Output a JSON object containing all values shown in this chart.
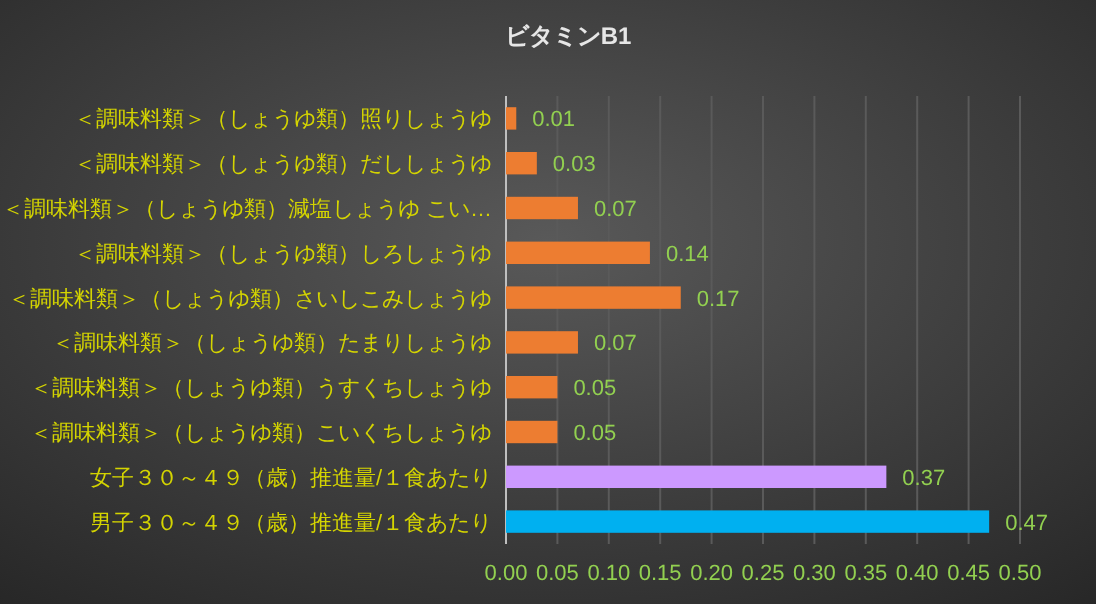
{
  "chart_data": {
    "type": "bar",
    "orientation": "horizontal",
    "title": "ビタミンB1",
    "categories": [
      "＜調味料類＞（しょうゆ類）照りしょうゆ",
      "＜調味料類＞（しょうゆ類）だししょうゆ",
      "＜調味料類＞（しょうゆ類）減塩しょうゆ こい…",
      "＜調味料類＞（しょうゆ類）しろしょうゆ",
      "＜調味料類＞（しょうゆ類）さいしこみしょうゆ",
      "＜調味料類＞（しょうゆ類）たまりしょうゆ",
      "＜調味料類＞（しょうゆ類）うすくちしょうゆ",
      "＜調味料類＞（しょうゆ類）こいくちしょうゆ",
      "女子３０～４９（歳）推進量/１食あたり",
      "男子３０～４９（歳）推進量/１食あたり"
    ],
    "values": [
      0.01,
      0.03,
      0.07,
      0.14,
      0.17,
      0.07,
      0.05,
      0.05,
      0.37,
      0.47
    ],
    "colors": [
      "#ed7d31",
      "#ed7d31",
      "#ed7d31",
      "#ed7d31",
      "#ed7d31",
      "#ed7d31",
      "#ed7d31",
      "#ed7d31",
      "#cc99ff",
      "#00b0f0"
    ],
    "xlim": [
      0,
      0.5
    ],
    "xticks": [
      {
        "value": 0,
        "label": "0.00"
      },
      {
        "value": 0.05,
        "label": "0.05"
      },
      {
        "value": 0.1,
        "label": "0.10"
      },
      {
        "value": 0.15,
        "label": "0.15"
      },
      {
        "value": 0.2,
        "label": "0.20"
      },
      {
        "value": 0.25,
        "label": "0.25"
      },
      {
        "value": 0.3,
        "label": "0.30"
      },
      {
        "value": 0.35,
        "label": "0.35"
      },
      {
        "value": 0.4,
        "label": "0.40"
      },
      {
        "value": 0.45,
        "label": "0.45"
      },
      {
        "value": 0.5,
        "label": "0.50"
      }
    ],
    "grid": "x",
    "data_labels": true
  }
}
